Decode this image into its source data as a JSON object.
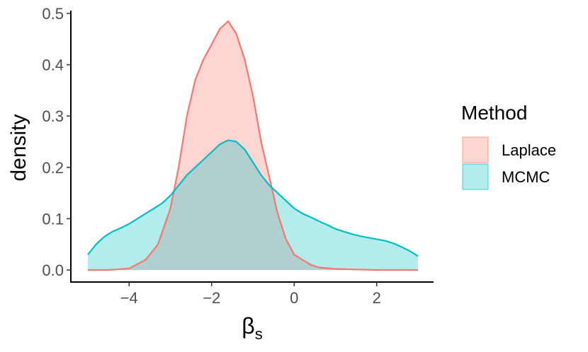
{
  "chart_data": {
    "type": "area",
    "xlabel": "β",
    "xlabel_subscript": "s",
    "ylabel": "density",
    "xlim": [
      -5,
      3
    ],
    "ylim": [
      0,
      0.5
    ],
    "x_ticks": [
      -4,
      -2,
      0,
      2
    ],
    "x_tick_labels": [
      "−4",
      "−2",
      "0",
      "2"
    ],
    "y_ticks": [
      0.0,
      0.1,
      0.2,
      0.3,
      0.4,
      0.5
    ],
    "y_tick_labels": [
      "0.0",
      "0.1",
      "0.2",
      "0.3",
      "0.4",
      "0.5"
    ],
    "grid": false,
    "legend": {
      "title": "Method",
      "position": "right",
      "entries": [
        "Laplace",
        "MCMC"
      ]
    },
    "series": [
      {
        "name": "Laplace",
        "line_color": "#f8766d",
        "fill_color": "#f8766d",
        "fill_opacity": 0.3,
        "points": [
          [
            -5.0,
            0.0
          ],
          [
            -4.5,
            0.0
          ],
          [
            -4.0,
            0.003
          ],
          [
            -3.6,
            0.02
          ],
          [
            -3.3,
            0.05
          ],
          [
            -3.0,
            0.12
          ],
          [
            -2.8,
            0.2
          ],
          [
            -2.6,
            0.3
          ],
          [
            -2.4,
            0.37
          ],
          [
            -2.2,
            0.41
          ],
          [
            -2.0,
            0.44
          ],
          [
            -1.8,
            0.47
          ],
          [
            -1.6,
            0.485
          ],
          [
            -1.4,
            0.46
          ],
          [
            -1.2,
            0.41
          ],
          [
            -1.0,
            0.34
          ],
          [
            -0.8,
            0.25
          ],
          [
            -0.6,
            0.18
          ],
          [
            -0.4,
            0.11
          ],
          [
            -0.2,
            0.06
          ],
          [
            0.0,
            0.03
          ],
          [
            0.2,
            0.02
          ],
          [
            0.4,
            0.01
          ],
          [
            0.6,
            0.005
          ],
          [
            1.0,
            0.002
          ],
          [
            2.0,
            0.0
          ],
          [
            3.0,
            0.0
          ]
        ]
      },
      {
        "name": "MCMC",
        "line_color": "#00bfc4",
        "fill_color": "#00bfc4",
        "fill_opacity": 0.3,
        "points": [
          [
            -5.0,
            0.03
          ],
          [
            -4.8,
            0.05
          ],
          [
            -4.6,
            0.065
          ],
          [
            -4.4,
            0.075
          ],
          [
            -4.2,
            0.082
          ],
          [
            -4.0,
            0.09
          ],
          [
            -3.8,
            0.1
          ],
          [
            -3.6,
            0.11
          ],
          [
            -3.4,
            0.12
          ],
          [
            -3.2,
            0.13
          ],
          [
            -3.0,
            0.145
          ],
          [
            -2.8,
            0.165
          ],
          [
            -2.6,
            0.185
          ],
          [
            -2.4,
            0.2
          ],
          [
            -2.2,
            0.215
          ],
          [
            -2.0,
            0.23
          ],
          [
            -1.8,
            0.245
          ],
          [
            -1.6,
            0.253
          ],
          [
            -1.4,
            0.25
          ],
          [
            -1.2,
            0.235
          ],
          [
            -1.0,
            0.21
          ],
          [
            -0.8,
            0.185
          ],
          [
            -0.6,
            0.165
          ],
          [
            -0.4,
            0.15
          ],
          [
            -0.2,
            0.135
          ],
          [
            0.0,
            0.12
          ],
          [
            0.2,
            0.11
          ],
          [
            0.4,
            0.103
          ],
          [
            0.6,
            0.095
          ],
          [
            0.8,
            0.088
          ],
          [
            1.0,
            0.08
          ],
          [
            1.2,
            0.075
          ],
          [
            1.4,
            0.07
          ],
          [
            1.6,
            0.066
          ],
          [
            1.8,
            0.063
          ],
          [
            2.0,
            0.06
          ],
          [
            2.2,
            0.057
          ],
          [
            2.4,
            0.052
          ],
          [
            2.6,
            0.045
          ],
          [
            2.8,
            0.037
          ],
          [
            3.0,
            0.027
          ]
        ]
      }
    ]
  }
}
